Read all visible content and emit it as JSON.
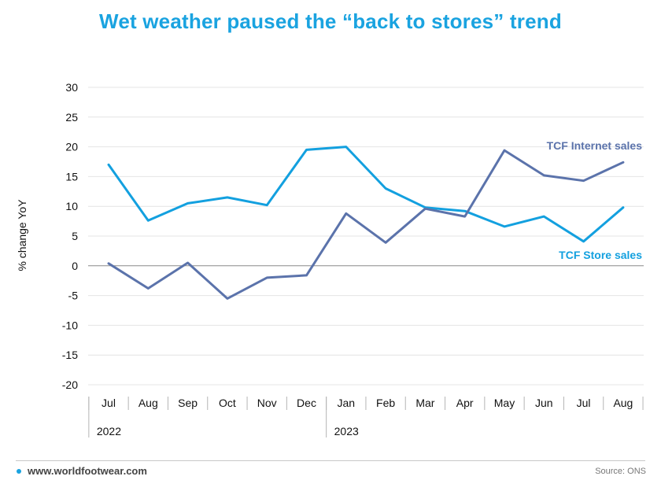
{
  "title": "Wet weather paused the “back to stores” trend",
  "footer": {
    "website": "www.worldfootwear.com",
    "source": "Source: ONS"
  },
  "colors": {
    "title": "#1aa3e0",
    "store": "#13a0df",
    "internet": "#5b73ab"
  },
  "chart_data": {
    "type": "line",
    "ylabel": "% change YoY",
    "xlabel": "",
    "ylim": [
      -20,
      30
    ],
    "yticks": [
      30,
      25,
      20,
      15,
      10,
      5,
      0,
      -5,
      -10,
      -15,
      -20
    ],
    "grid": true,
    "categories": [
      "Jul",
      "Aug",
      "Sep",
      "Oct",
      "Nov",
      "Dec",
      "Jan",
      "Feb",
      "Mar",
      "Apr",
      "May",
      "Jun",
      "Jul",
      "Aug"
    ],
    "years": [
      {
        "label": "2022",
        "start_index": 0
      },
      {
        "label": "2023",
        "start_index": 6
      }
    ],
    "series": [
      {
        "name": "TCF Store sales",
        "color": "#13a0df",
        "values": [
          17.0,
          7.6,
          10.5,
          11.5,
          10.2,
          19.5,
          20.0,
          13.0,
          9.8,
          9.2,
          6.6,
          8.3,
          4.1,
          9.8
        ]
      },
      {
        "name": "TCF Internet sales",
        "color": "#5b73ab",
        "values": [
          0.4,
          -3.8,
          0.5,
          -5.5,
          -2.0,
          -1.6,
          8.8,
          3.9,
          9.6,
          8.3,
          19.4,
          15.2,
          14.3,
          17.4
        ]
      }
    ]
  }
}
